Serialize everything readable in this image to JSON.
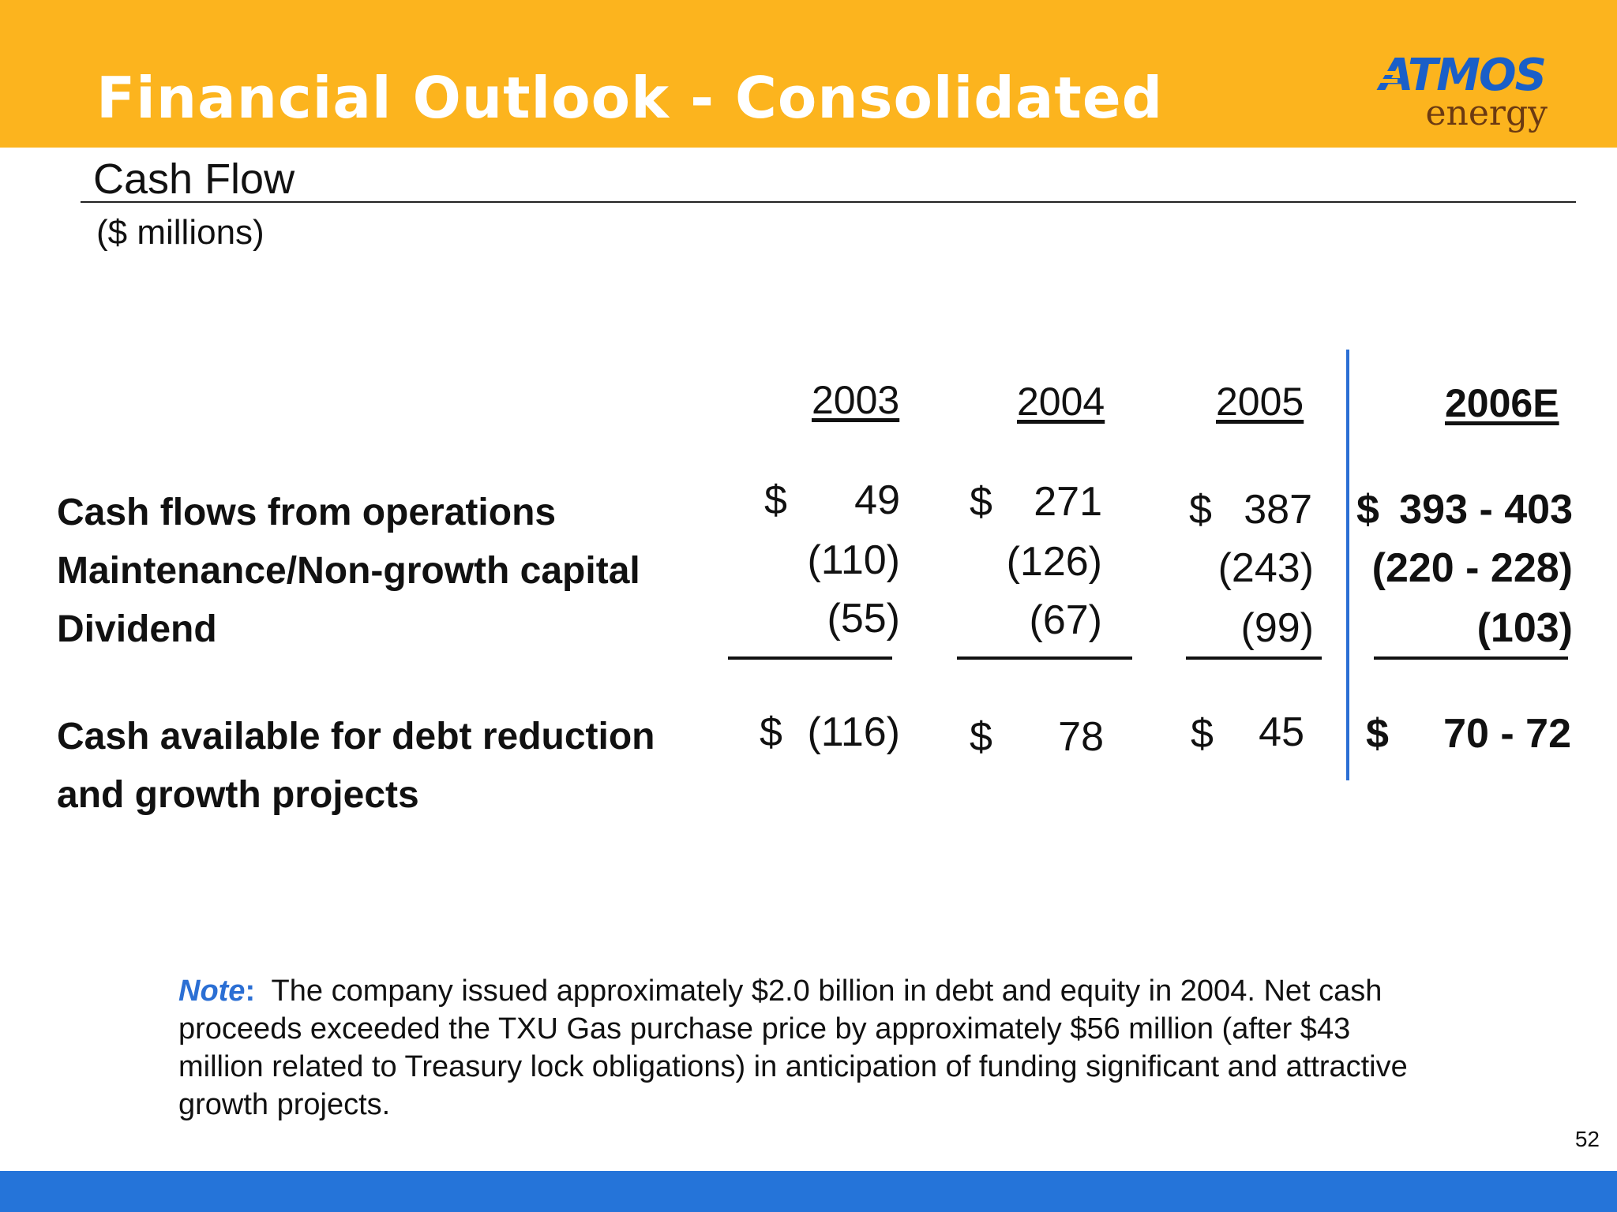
{
  "header": {
    "title": "Financial Outlook - Consolidated",
    "logo_top": "ATMOS",
    "logo_bottom": "energy"
  },
  "section": {
    "subtitle": "Cash Flow",
    "units": "($ millions)"
  },
  "table": {
    "columns": [
      "2003",
      "2004",
      "2005",
      "2006E"
    ],
    "rows": [
      {
        "label": "Cash flows from operations",
        "values": [
          "49",
          "271",
          "387",
          "393 - 403"
        ],
        "dollar": "$"
      },
      {
        "label": "Maintenance/Non-growth capital",
        "values": [
          "(110)",
          "(126)",
          "(243)",
          "(220 - 228)"
        ]
      },
      {
        "label": "Dividend",
        "values": [
          "(55)",
          "(67)",
          "(99)",
          "(103)"
        ]
      }
    ],
    "total": {
      "label_line1": "Cash available for debt reduction",
      "label_line2": "and growth projects",
      "values": [
        "(116)",
        "78",
        "45",
        "70 - 72"
      ],
      "dollar": "$"
    }
  },
  "note": {
    "label": "Note",
    "colon": ":",
    "text": "The company issued approximately $2.0 billion in debt and equity in 2004. Net cash proceeds exceeded the TXU Gas purchase price by approximately $56 million (after $43 million related to Treasury lock obligations) in anticipation of funding significant and attractive growth projects."
  },
  "page_number": "52",
  "colors": {
    "header_bg": "#fcb41e",
    "accent_blue": "#2b6fd4",
    "footer_bg": "#2574d9",
    "logo_blue": "#1a5fc8",
    "logo_brown": "#6b3a12"
  }
}
